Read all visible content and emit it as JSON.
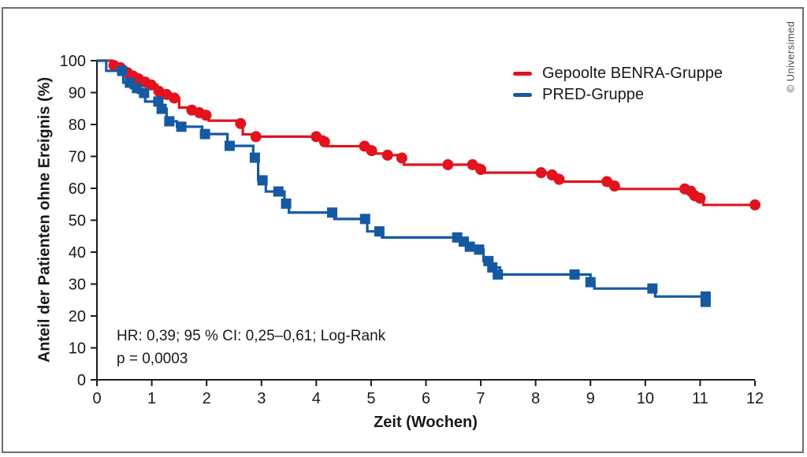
{
  "figure": {
    "copyright": "© Universimed",
    "border_color": "#6e6e6e",
    "background": "#ffffff",
    "axis_color": "#1a1a1a"
  },
  "chart_data": {
    "type": "line",
    "subtype": "kaplan-meier-step",
    "title": "",
    "xlabel": "Zeit (Wochen)",
    "ylabel": "Anteil der Patienten ohne Ereignis (%)",
    "xlim": [
      0,
      12
    ],
    "ylim": [
      0,
      100
    ],
    "x_ticks": [
      0,
      1,
      2,
      3,
      4,
      5,
      6,
      7,
      8,
      9,
      10,
      11,
      12
    ],
    "y_ticks": [
      0,
      10,
      20,
      30,
      40,
      50,
      60,
      70,
      80,
      90,
      100
    ],
    "grid": false,
    "legend_position": "top-right-inside",
    "annotation": {
      "line1": "HR: 0,39; 95 % CI: 0,25–0,61; Log-Rank",
      "line2": "p = 0,0003"
    },
    "series": [
      {
        "name": "Gepoolte BENRA-Gruppe",
        "color": "#e2131c",
        "marker": "circle",
        "steps": [
          [
            0,
            100
          ],
          [
            0.28,
            98.5
          ],
          [
            0.4,
            97.8
          ],
          [
            0.52,
            96.2
          ],
          [
            0.63,
            95.2
          ],
          [
            0.73,
            94.3
          ],
          [
            0.84,
            93.3
          ],
          [
            0.96,
            92.4
          ],
          [
            1.1,
            90.4
          ],
          [
            1.24,
            89.4
          ],
          [
            1.38,
            88.3
          ],
          [
            1.5,
            85.3
          ],
          [
            1.7,
            84.5
          ],
          [
            1.84,
            83.7
          ],
          [
            1.97,
            82.9
          ],
          [
            2.04,
            81.2
          ],
          [
            2.6,
            80.3
          ],
          [
            2.66,
            76.9
          ],
          [
            2.88,
            76.2
          ],
          [
            4.13,
            74.6
          ],
          [
            4.2,
            73.2
          ],
          [
            4.99,
            71.8
          ],
          [
            5.06,
            70.9
          ],
          [
            5.28,
            70.4
          ],
          [
            5.54,
            69.5
          ],
          [
            5.6,
            67.4
          ],
          [
            6.98,
            65.9
          ],
          [
            7.06,
            64.9
          ],
          [
            8.28,
            64.2
          ],
          [
            8.41,
            62.8
          ],
          [
            8.48,
            62.1
          ],
          [
            9.42,
            60.7
          ],
          [
            9.5,
            59.8
          ],
          [
            10.81,
            59.1
          ],
          [
            10.88,
            57.7
          ],
          [
            10.98,
            56.9
          ],
          [
            11.06,
            54.8
          ],
          [
            12.0,
            54.8
          ]
        ],
        "markers": [
          [
            0.31,
            98.5
          ],
          [
            0.43,
            97.8
          ],
          [
            0.56,
            96.2
          ],
          [
            0.66,
            95.2
          ],
          [
            0.76,
            94.3
          ],
          [
            0.88,
            93.3
          ],
          [
            0.99,
            92.4
          ],
          [
            1.13,
            90.4
          ],
          [
            1.27,
            89.4
          ],
          [
            1.41,
            88.3
          ],
          [
            1.73,
            84.5
          ],
          [
            1.87,
            83.7
          ],
          [
            1.99,
            82.9
          ],
          [
            2.62,
            80.3
          ],
          [
            2.9,
            76.2
          ],
          [
            4.0,
            76.2
          ],
          [
            4.15,
            74.6
          ],
          [
            4.88,
            73.2
          ],
          [
            5.01,
            71.8
          ],
          [
            5.3,
            70.4
          ],
          [
            5.56,
            69.5
          ],
          [
            6.4,
            67.4
          ],
          [
            6.85,
            67.4
          ],
          [
            7.0,
            65.9
          ],
          [
            8.1,
            64.9
          ],
          [
            8.3,
            64.2
          ],
          [
            8.43,
            62.8
          ],
          [
            9.3,
            62.1
          ],
          [
            9.44,
            60.7
          ],
          [
            10.72,
            59.8
          ],
          [
            10.83,
            59.1
          ],
          [
            10.9,
            57.7
          ],
          [
            11.0,
            56.9
          ],
          [
            12.0,
            54.8
          ]
        ]
      },
      {
        "name": "PRED-Gruppe",
        "color": "#1659a3",
        "marker": "square",
        "steps": [
          [
            0,
            100
          ],
          [
            0.17,
            96.8
          ],
          [
            0.48,
            93.1
          ],
          [
            0.62,
            91.4
          ],
          [
            0.75,
            89.9
          ],
          [
            0.88,
            87.2
          ],
          [
            1.15,
            84.9
          ],
          [
            1.27,
            81.0
          ],
          [
            1.46,
            79.3
          ],
          [
            1.92,
            77.0
          ],
          [
            2.38,
            73.3
          ],
          [
            2.85,
            69.6
          ],
          [
            2.94,
            62.5
          ],
          [
            3.08,
            59.0
          ],
          [
            3.42,
            55.2
          ],
          [
            3.5,
            52.4
          ],
          [
            4.33,
            50.4
          ],
          [
            4.93,
            46.5
          ],
          [
            5.2,
            44.6
          ],
          [
            6.62,
            43.3
          ],
          [
            6.74,
            41.7
          ],
          [
            6.88,
            40.8
          ],
          [
            7.05,
            37.2
          ],
          [
            7.18,
            35.2
          ],
          [
            7.35,
            33.0
          ],
          [
            9.0,
            30.6
          ],
          [
            9.07,
            28.6
          ],
          [
            10.18,
            26.1
          ],
          [
            11.1,
            24.4
          ],
          [
            11.15,
            24.4
          ]
        ],
        "markers": [
          [
            0.46,
            96.8
          ],
          [
            0.6,
            93.1
          ],
          [
            0.73,
            91.4
          ],
          [
            0.86,
            89.9
          ],
          [
            1.12,
            87.2
          ],
          [
            1.18,
            84.9
          ],
          [
            1.32,
            81.0
          ],
          [
            1.54,
            79.3
          ],
          [
            1.97,
            77.0
          ],
          [
            2.42,
            73.3
          ],
          [
            2.88,
            69.6
          ],
          [
            3.02,
            62.5
          ],
          [
            3.31,
            59.0
          ],
          [
            3.45,
            55.2
          ],
          [
            4.29,
            52.4
          ],
          [
            4.89,
            50.4
          ],
          [
            5.15,
            46.5
          ],
          [
            6.57,
            44.6
          ],
          [
            6.69,
            43.3
          ],
          [
            6.8,
            41.7
          ],
          [
            6.97,
            40.8
          ],
          [
            7.14,
            37.2
          ],
          [
            7.21,
            35.2
          ],
          [
            7.31,
            33.0
          ],
          [
            8.71,
            33.0
          ],
          [
            9.0,
            30.6
          ],
          [
            10.13,
            28.6
          ],
          [
            11.1,
            26.1
          ],
          [
            11.1,
            24.4
          ]
        ]
      }
    ]
  }
}
